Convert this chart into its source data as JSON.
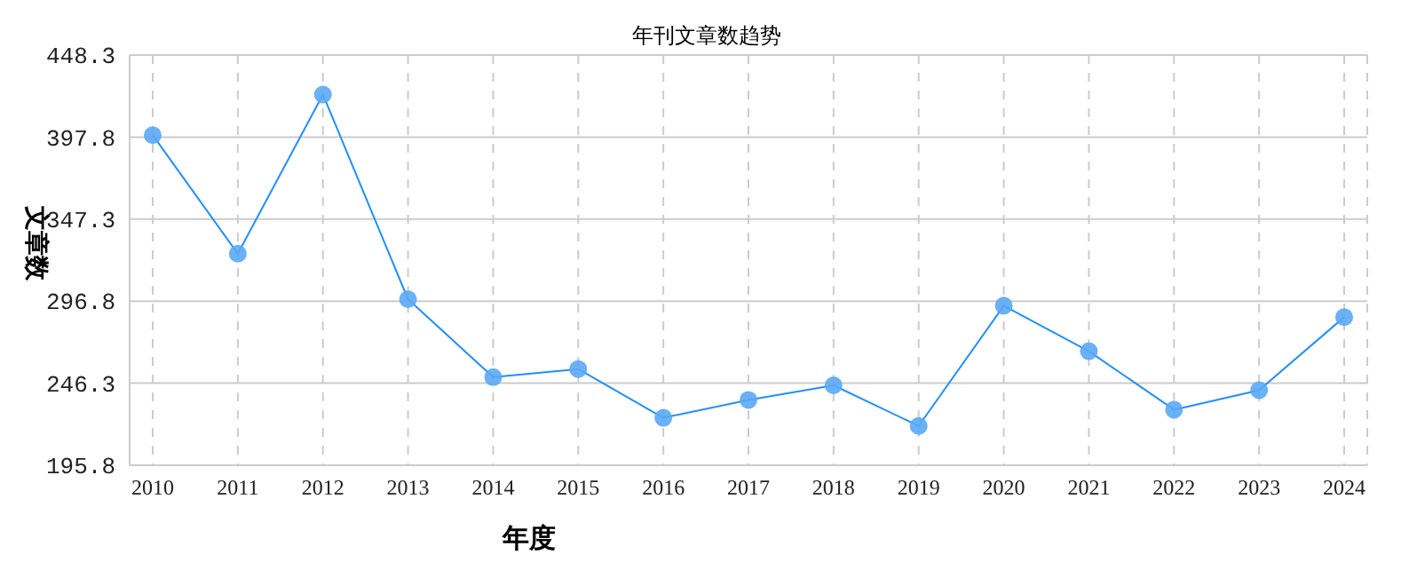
{
  "chart_data": {
    "type": "line",
    "title": "年刊文章数趋势",
    "xlabel": "年度",
    "ylabel": "文章数",
    "categories": [
      "2010",
      "2011",
      "2012",
      "2013",
      "2014",
      "2015",
      "2016",
      "2017",
      "2018",
      "2019",
      "2020",
      "2021",
      "2022",
      "2023",
      "2024"
    ],
    "series": [
      {
        "color": "#1e90ff",
        "values": [
          399,
          326,
          424,
          298,
          250,
          255,
          225,
          236,
          245,
          220,
          294,
          266,
          230,
          242,
          287
        ]
      }
    ],
    "ylim": [
      195.8,
      448.3
    ],
    "yticks": [
      195.8,
      246.3,
      296.8,
      347.3,
      397.8,
      448.3
    ],
    "grid": true,
    "marker": "circle",
    "line_style": "solid"
  }
}
